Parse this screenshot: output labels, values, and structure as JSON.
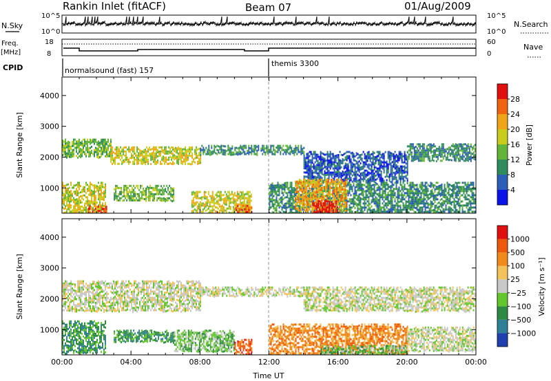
{
  "header": {
    "station": "Rankin Inlet (fitACF)",
    "beam": "Beam 07",
    "date": "01/Aug/2009"
  },
  "strip": {
    "nsky_label": "N.Sky",
    "nsearch_label": "N.Search",
    "freq_label": "Freq.",
    "freq_unit": "[MHz]",
    "nave_label": "Nave",
    "cpid_label": "CPID",
    "nsky_ticks": [
      "10^5",
      "10^0"
    ],
    "nsearch_ticks": [
      "10^5",
      "10^0"
    ],
    "freq_ticks": [
      "18",
      "8"
    ],
    "nave_ticks": [
      "60",
      "0"
    ],
    "cpid_segments": [
      {
        "start_hour": 0,
        "label": "normalsound (fast) 157"
      },
      {
        "start_hour": 12,
        "label": "themis 3300"
      }
    ]
  },
  "chart_data": [
    {
      "type": "heatmap",
      "name": "power",
      "ylabel": "Slant Range [km]",
      "xlabel": "",
      "x_range_hours": [
        0,
        24
      ],
      "ylim": [
        180,
        4600
      ],
      "yticks": [
        "1000",
        "2000",
        "3000",
        "4000"
      ],
      "colorbar": {
        "label": "Power [dB]",
        "ticks": [
          "4",
          "8",
          "12",
          "16",
          "20",
          "24",
          "28"
        ],
        "colors": [
          "#0a14e6",
          "#2c5db7",
          "#2f8a5c",
          "#63b53a",
          "#c9cc1a",
          "#f0a418",
          "#f06410",
          "#e01010"
        ]
      },
      "bands": [
        {
          "x0": 0.0,
          "x1": 2.8,
          "r0": 2000,
          "r1": 2600,
          "level": 3
        },
        {
          "x0": 2.8,
          "x1": 8.0,
          "r0": 1800,
          "r1": 2350,
          "level": 4
        },
        {
          "x0": 8.0,
          "x1": 14.0,
          "r0": 2100,
          "r1": 2400,
          "level": 2
        },
        {
          "x0": 14.0,
          "x1": 20.0,
          "r0": 1200,
          "r1": 2200,
          "level": 1
        },
        {
          "x0": 20.0,
          "x1": 24.0,
          "r0": 1900,
          "r1": 2450,
          "level": 2
        },
        {
          "x0": 0.0,
          "x1": 2.5,
          "r0": 200,
          "r1": 1200,
          "level": 4
        },
        {
          "x0": 1.5,
          "x1": 2.6,
          "r0": 180,
          "r1": 420,
          "level": 7
        },
        {
          "x0": 3.0,
          "x1": 6.5,
          "r0": 600,
          "r1": 1100,
          "level": 3
        },
        {
          "x0": 7.5,
          "x1": 11.0,
          "r0": 200,
          "r1": 900,
          "level": 4
        },
        {
          "x0": 10.0,
          "x1": 11.0,
          "r0": 200,
          "r1": 450,
          "level": 6
        },
        {
          "x0": 12.0,
          "x1": 24.0,
          "r0": 200,
          "r1": 1200,
          "level": 2
        },
        {
          "x0": 13.5,
          "x1": 16.5,
          "r0": 250,
          "r1": 1300,
          "level": 5
        },
        {
          "x0": 14.5,
          "x1": 16.0,
          "r0": 200,
          "r1": 600,
          "level": 7
        }
      ]
    },
    {
      "type": "heatmap",
      "name": "velocity",
      "ylabel": "Slant Range [km]",
      "xlabel": "Time UT",
      "x_range_hours": [
        0,
        24
      ],
      "xticks": [
        "00:00",
        "04:00",
        "08:00",
        "12:00",
        "16:00",
        "20:00",
        "00:00"
      ],
      "ylim": [
        180,
        4600
      ],
      "yticks": [
        "1000",
        "2000",
        "3000",
        "4000"
      ],
      "colorbar": {
        "label": "Velocity [m s⁻¹]",
        "ticks": [
          "1000",
          "500",
          "100",
          "25",
          "−25",
          "−100",
          "−500",
          "−1000"
        ],
        "colors": [
          "#2040b0",
          "#2f7f96",
          "#2e8a42",
          "#62c62c",
          "#c8c8c8",
          "#f2c35a",
          "#f08a1a",
          "#ee5a0c",
          "#e01010"
        ]
      },
      "bands": [
        {
          "x0": 0.0,
          "x1": 8.0,
          "r0": 1600,
          "r1": 2600,
          "level": 4
        },
        {
          "x0": 8.0,
          "x1": 14.0,
          "r0": 2100,
          "r1": 2400,
          "level": 4
        },
        {
          "x0": 14.0,
          "x1": 24.0,
          "r0": 1600,
          "r1": 2400,
          "level": 4
        },
        {
          "x0": 0.0,
          "x1": 2.5,
          "r0": 250,
          "r1": 1300,
          "level": 2
        },
        {
          "x0": 3.0,
          "x1": 6.5,
          "r0": 600,
          "r1": 1000,
          "level": 2
        },
        {
          "x0": 6.5,
          "x1": 10.0,
          "r0": 300,
          "r1": 1000,
          "level": 3
        },
        {
          "x0": 10.0,
          "x1": 11.0,
          "r0": 200,
          "r1": 700,
          "level": 7
        },
        {
          "x0": 12.0,
          "x1": 20.0,
          "r0": 200,
          "r1": 1200,
          "level": 6
        },
        {
          "x0": 15.0,
          "x1": 20.0,
          "r0": 200,
          "r1": 500,
          "level": 3
        },
        {
          "x0": 20.0,
          "x1": 24.0,
          "r0": 300,
          "r1": 1100,
          "level": 4
        }
      ]
    }
  ]
}
